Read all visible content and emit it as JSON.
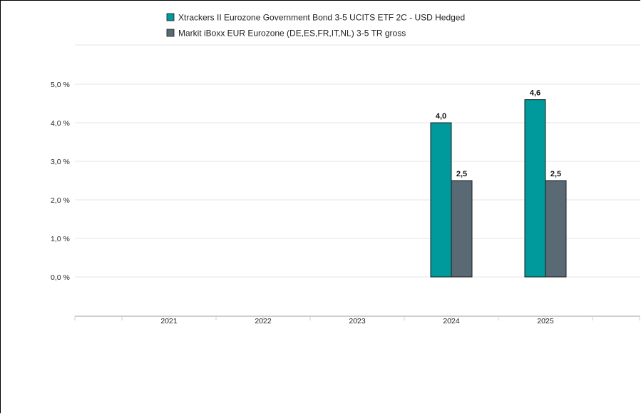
{
  "chart_data": {
    "type": "bar",
    "categories": [
      "2021",
      "2022",
      "2023",
      "2024",
      "2025"
    ],
    "series": [
      {
        "name": "Xtrackers II Eurozone Government Bond 3-5 UCITS ETF 2C - USD Hedged",
        "color": "#009a9c",
        "values": [
          null,
          null,
          null,
          4.0,
          4.6
        ],
        "labels": [
          "",
          "",
          "",
          "4,0",
          "4,6"
        ]
      },
      {
        "name": "Markit iBoxx EUR Eurozone (DE,ES,FR,IT,NL) 3-5 TR gross",
        "color": "#5a6a74",
        "values": [
          null,
          null,
          null,
          2.5,
          2.5
        ],
        "labels": [
          "",
          "",
          "",
          "2,5",
          "2,5"
        ]
      }
    ],
    "y_ticks": [
      0,
      1,
      2,
      3,
      4,
      5
    ],
    "y_tick_labels": [
      "0,0 %",
      "1,0 %",
      "2,0 %",
      "3,0 %",
      "4,0 %",
      "5,0 %"
    ],
    "ylim": [
      0,
      5
    ],
    "grid": true,
    "legend_position": "top-center",
    "title": "",
    "xlabel": "",
    "ylabel": ""
  }
}
